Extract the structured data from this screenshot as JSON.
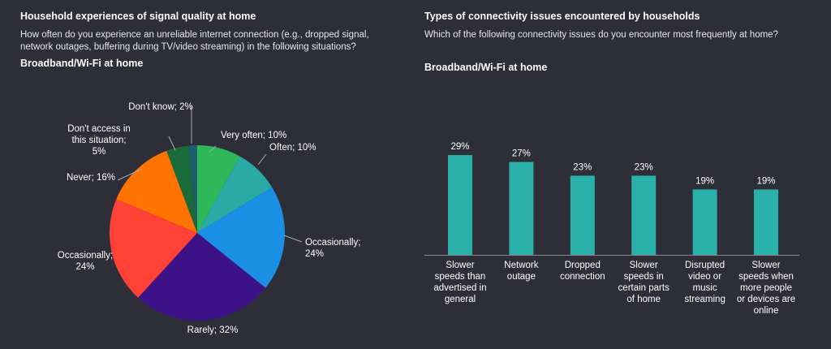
{
  "left": {
    "title": "Household experiences of signal quality at home",
    "subtitle": "How often do you experience an unreliable internet connection (e.g., dropped signal, network outages, buffering during TV/video streaming) in the following situations?",
    "section": "Broadband/Wi-Fi at home"
  },
  "right": {
    "title": "Types of connectivity issues encountered by households",
    "subtitle": "Which of the following connectivity issues do you encounter most frequently at home?",
    "section": "Broadband/Wi-Fi at home"
  },
  "chart_data": [
    {
      "type": "pie",
      "title": "Broadband/Wi-Fi at home",
      "labels": [
        "Very often; 10%",
        "Often; 10%",
        "Occasionally; 24%",
        "Rarely; 32%",
        "Occasionally; 24%",
        "Never; 16%",
        "Don't access in this situation; 5%",
        "Don't know; 2%"
      ],
      "categories": [
        "Very often",
        "Often",
        "Occasionally",
        "Rarely",
        "Occasionally",
        "Never",
        "Don't access in this situation",
        "Don't know"
      ],
      "values": [
        10,
        10,
        24,
        32,
        24,
        16,
        5,
        2
      ],
      "colors": [
        "#2db85a",
        "#2aa9a6",
        "#1b8fe3",
        "#3d1188",
        "#ff4136",
        "#ff7300",
        "#1a6b3a",
        "#1d5e6e"
      ]
    },
    {
      "type": "bar",
      "title": "Broadband/Wi-Fi at home",
      "categories": [
        "Slower speeds than advertised in general",
        "Network outage",
        "Dropped connection",
        "Slower speeds in certain parts of home",
        "Disrupted video or music streaming",
        "Slower speeds when more people or devices are online"
      ],
      "values": [
        29,
        27,
        23,
        23,
        19,
        19
      ],
      "value_labels": [
        "29%",
        "27%",
        "23%",
        "23%",
        "19%",
        "19%"
      ],
      "color": "#2ab0aa",
      "ylim": [
        0,
        30
      ]
    }
  ]
}
